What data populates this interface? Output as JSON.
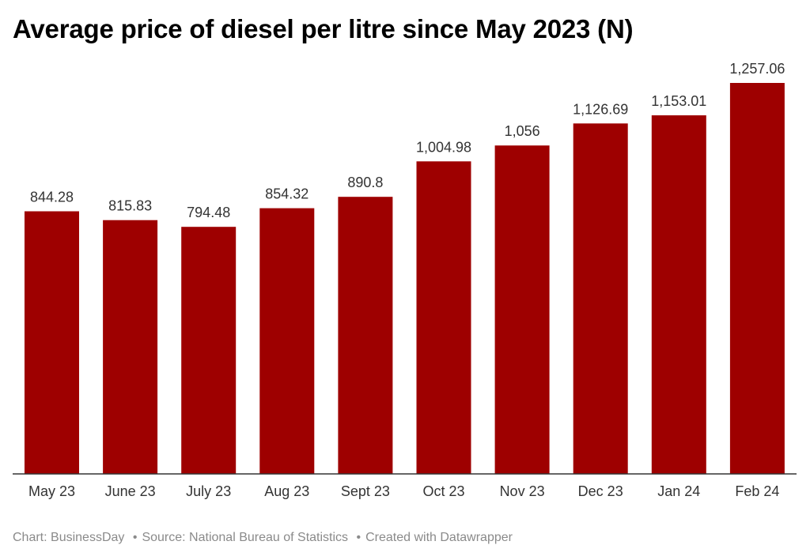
{
  "title": "Average price of diesel per litre since May 2023 (N)",
  "footer": {
    "chart_credit": "Chart: BusinessDay",
    "source": "Source: National Bureau of Statistics",
    "created": "Created with Datawrapper",
    "separator": "•"
  },
  "colors": {
    "bar": "#9e0000",
    "axis": "#333333",
    "label": "#333333"
  },
  "chart_data": {
    "type": "bar",
    "title": "Average price of diesel per litre since May 2023 (N)",
    "xlabel": "",
    "ylabel": "",
    "ylim": [
      0,
      1257.06
    ],
    "grid": false,
    "categories": [
      "May 23",
      "June 23",
      "July 23",
      "Aug 23",
      "Sept 23",
      "Oct 23",
      "Nov 23",
      "Dec 23",
      "Jan 24",
      "Feb 24"
    ],
    "values": [
      844.28,
      815.83,
      794.48,
      854.32,
      890.8,
      1004.98,
      1056,
      1126.69,
      1153.01,
      1257.06
    ],
    "value_labels": [
      "844.28",
      "815.83",
      "794.48",
      "854.32",
      "890.8",
      "1,004.98",
      "1,056",
      "1,126.69",
      "1,153.01",
      "1,257.06"
    ]
  }
}
